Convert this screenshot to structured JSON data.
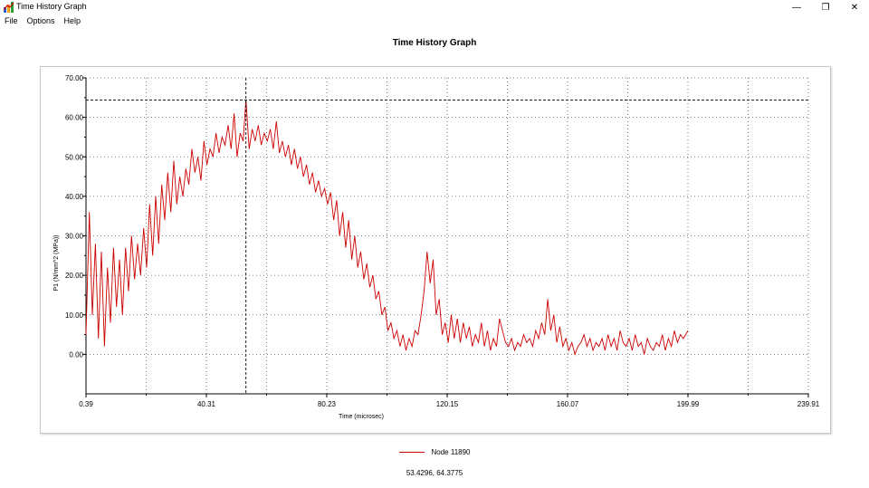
{
  "window": {
    "title": "Time History Graph",
    "controls": [
      "—",
      "❐",
      "✕"
    ]
  },
  "menu": [
    "File",
    "Options",
    "Help"
  ],
  "chart_data": {
    "type": "line",
    "title": "Time History Graph",
    "xlabel": "Time (microsec)",
    "ylabel": "P1 (N/mm^2 (MPa))",
    "xlim": [
      0.39,
      239.91
    ],
    "ylim": [
      -10,
      70
    ],
    "xticks": [
      "0.39",
      "40.31",
      "80.23",
      "120.15",
      "160.07",
      "199.99",
      "239.91"
    ],
    "yticks": [
      "70.00",
      "60.00",
      "50.00",
      "40.00",
      "30.00",
      "20.00",
      "10.00",
      "0.00"
    ],
    "grid": true,
    "legend_position": "bottom-center",
    "series": [
      {
        "name": "Node 11890",
        "color": "#cc0000",
        "x": [
          0.39,
          1.5,
          2.5,
          3.5,
          4.5,
          5.5,
          6.5,
          7.5,
          8.5,
          9.5,
          10.5,
          11.5,
          12.5,
          13.5,
          14.5,
          15.5,
          16.5,
          17.5,
          18.5,
          19.5,
          20.5,
          21.5,
          22.5,
          23.5,
          24.5,
          25.5,
          26.5,
          27.5,
          28.5,
          29.5,
          30.5,
          31.5,
          32.5,
          33.5,
          34.5,
          35.5,
          36.5,
          37.5,
          38.5,
          39.5,
          40.5,
          41.5,
          42.5,
          43.5,
          44.5,
          45.5,
          46.5,
          47.5,
          48.5,
          49.5,
          50.5,
          51.5,
          52.5,
          53.43,
          54.5,
          55.5,
          56.5,
          57.5,
          58.5,
          59.5,
          60.5,
          61.5,
          62.5,
          63.5,
          64.5,
          65.5,
          66.5,
          67.5,
          68.5,
          69.5,
          70.5,
          71.5,
          72.5,
          73.5,
          74.5,
          75.5,
          76.5,
          77.5,
          78.5,
          79.5,
          80.5,
          81.5,
          82.5,
          83.5,
          84.5,
          85.5,
          86.5,
          87.5,
          88.5,
          89.5,
          90.5,
          91.5,
          92.5,
          93.5,
          94.5,
          95.5,
          96.5,
          97.5,
          98.5,
          99.5,
          100.5,
          101.5,
          102.5,
          103.5,
          104.5,
          105.5,
          106.5,
          107.5,
          108.5,
          109.5,
          110.5,
          111.5,
          112.5,
          113.5,
          114.5,
          115.5,
          116.5,
          117.5,
          118.5,
          119.5,
          120.5,
          121.5,
          122.5,
          123.5,
          124.5,
          125.5,
          126.5,
          127.5,
          128.5,
          129.5,
          130.5,
          131.5,
          132.5,
          133.5,
          134.5,
          135.5,
          136.5,
          137.5,
          138.5,
          139.5,
          140.5,
          141.5,
          142.5,
          143.5,
          144.5,
          145.5,
          146.5,
          147.5,
          148.5,
          149.5,
          150.5,
          151.5,
          152.5,
          153.5,
          154.5,
          155.5,
          156.5,
          157.5,
          158.5,
          159.5,
          160.5,
          161.5,
          162.5,
          163.5,
          164.5,
          165.5,
          166.5,
          167.5,
          168.5,
          169.5,
          170.5,
          171.5,
          172.5,
          173.5,
          174.5,
          175.5,
          176.5,
          177.5,
          178.5,
          179.5,
          180.5,
          181.5,
          182.5,
          183.5,
          184.5,
          185.5,
          186.5,
          187.5,
          188.5,
          189.5,
          190.5,
          191.5,
          192.5,
          193.5,
          194.5,
          195.5,
          196.5,
          197.5,
          198.5,
          199.99
        ],
        "values": [
          5,
          36,
          10,
          28,
          4,
          26,
          2,
          22,
          8,
          27,
          12,
          24,
          10,
          27,
          16,
          30,
          19,
          28,
          20,
          32,
          22,
          38,
          25,
          40,
          28,
          43,
          34,
          46,
          36,
          49,
          38,
          45,
          40,
          47,
          43,
          52,
          46,
          50,
          44,
          54,
          48,
          52,
          50,
          56,
          51,
          55,
          53,
          58,
          52,
          61,
          50,
          56,
          54,
          64.4,
          52,
          57,
          54,
          58,
          53,
          56,
          54,
          57,
          52,
          59,
          51,
          54,
          50,
          53,
          48,
          52,
          47,
          50,
          45,
          48,
          43,
          46,
          41,
          44,
          40,
          42,
          38,
          41,
          34,
          39,
          30,
          36,
          27,
          34,
          24,
          30,
          22,
          26,
          19,
          23,
          17,
          20,
          14,
          16,
          10,
          12,
          6,
          8,
          4,
          6,
          2,
          5,
          1,
          4,
          2,
          6,
          5,
          10,
          16,
          26,
          18,
          24,
          10,
          14,
          5,
          8,
          3,
          10,
          4,
          9,
          3,
          8,
          4,
          7,
          2,
          5,
          3,
          8,
          2,
          6,
          1,
          4,
          2,
          9,
          6,
          3,
          2,
          4,
          1,
          3,
          2,
          5,
          3,
          4,
          2,
          6,
          4,
          8,
          5,
          14,
          6,
          10,
          3,
          7,
          2,
          4,
          1,
          3,
          0,
          2,
          3,
          5,
          2,
          4,
          1,
          3,
          2,
          4,
          1,
          5,
          2,
          4,
          1,
          6,
          3,
          2,
          4,
          1,
          5,
          2,
          3,
          0,
          4,
          2,
          1,
          3,
          2,
          5,
          1,
          4,
          2,
          6,
          3,
          5,
          4,
          6
        ]
      }
    ],
    "crosshair": {
      "x": 53.4296,
      "y": 64.3775,
      "label": "53.4296, 64.3775"
    }
  }
}
